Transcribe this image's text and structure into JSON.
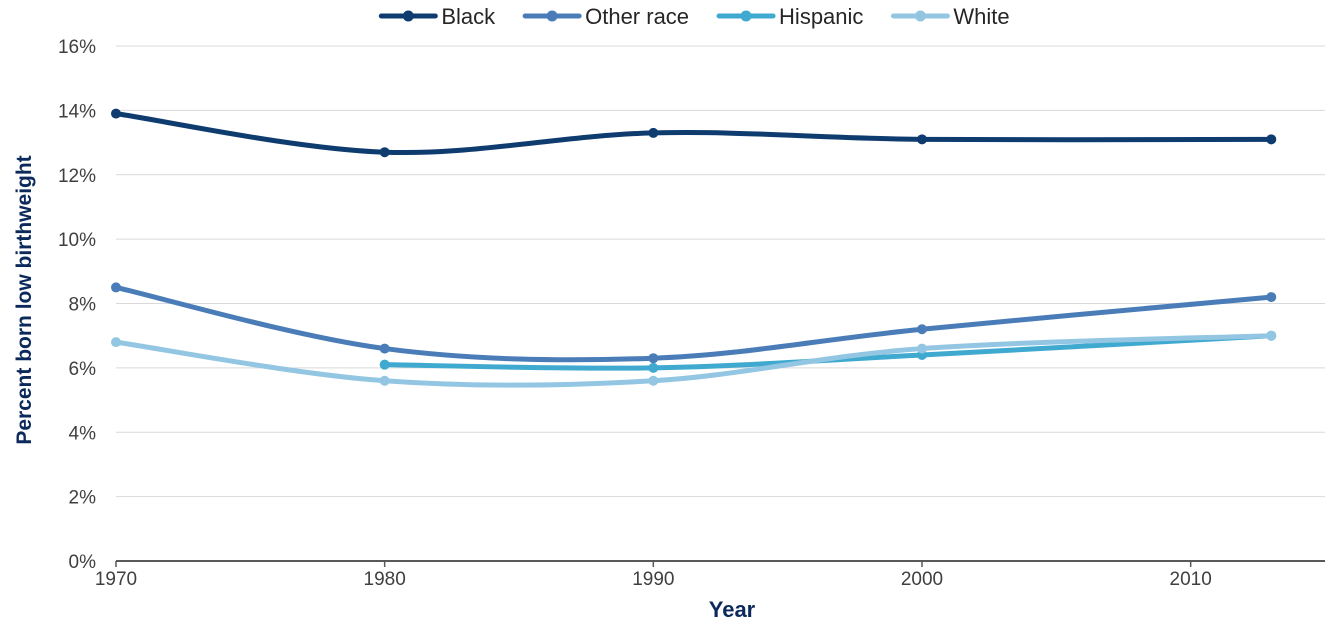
{
  "chart_data": {
    "type": "line",
    "title": "",
    "xlabel": "Year",
    "ylabel": "Percent born low birthweight",
    "x_ticks": [
      1970,
      1980,
      1990,
      2000,
      2010
    ],
    "xlim": [
      1970,
      2015
    ],
    "y_ticks": [
      0,
      2,
      4,
      6,
      8,
      10,
      12,
      14,
      16
    ],
    "y_tick_labels": [
      "0%",
      "2%",
      "4%",
      "6%",
      "8%",
      "10%",
      "12%",
      "14%",
      "16%"
    ],
    "ylim": [
      0,
      16
    ],
    "grid": "horizontal",
    "legend_position": "top",
    "smooth": true,
    "series": [
      {
        "name": "Black",
        "color": "#0f3c6e",
        "x": [
          1970,
          1980,
          1990,
          2000,
          2013
        ],
        "values": [
          13.9,
          12.7,
          13.3,
          13.1,
          13.1
        ]
      },
      {
        "name": "Other race",
        "color": "#4a7db8",
        "x": [
          1970,
          1980,
          1990,
          2000,
          2013
        ],
        "values": [
          8.5,
          6.6,
          6.3,
          7.2,
          8.2
        ]
      },
      {
        "name": "Hispanic",
        "color": "#3fa9cf",
        "x": [
          1980,
          1990,
          2000,
          2013
        ],
        "values": [
          6.1,
          6.0,
          6.4,
          7.0
        ]
      },
      {
        "name": "White",
        "color": "#93c6e2",
        "x": [
          1970,
          1980,
          1990,
          2000,
          2013
        ],
        "values": [
          6.8,
          5.6,
          5.6,
          6.6,
          7.0
        ]
      }
    ]
  }
}
